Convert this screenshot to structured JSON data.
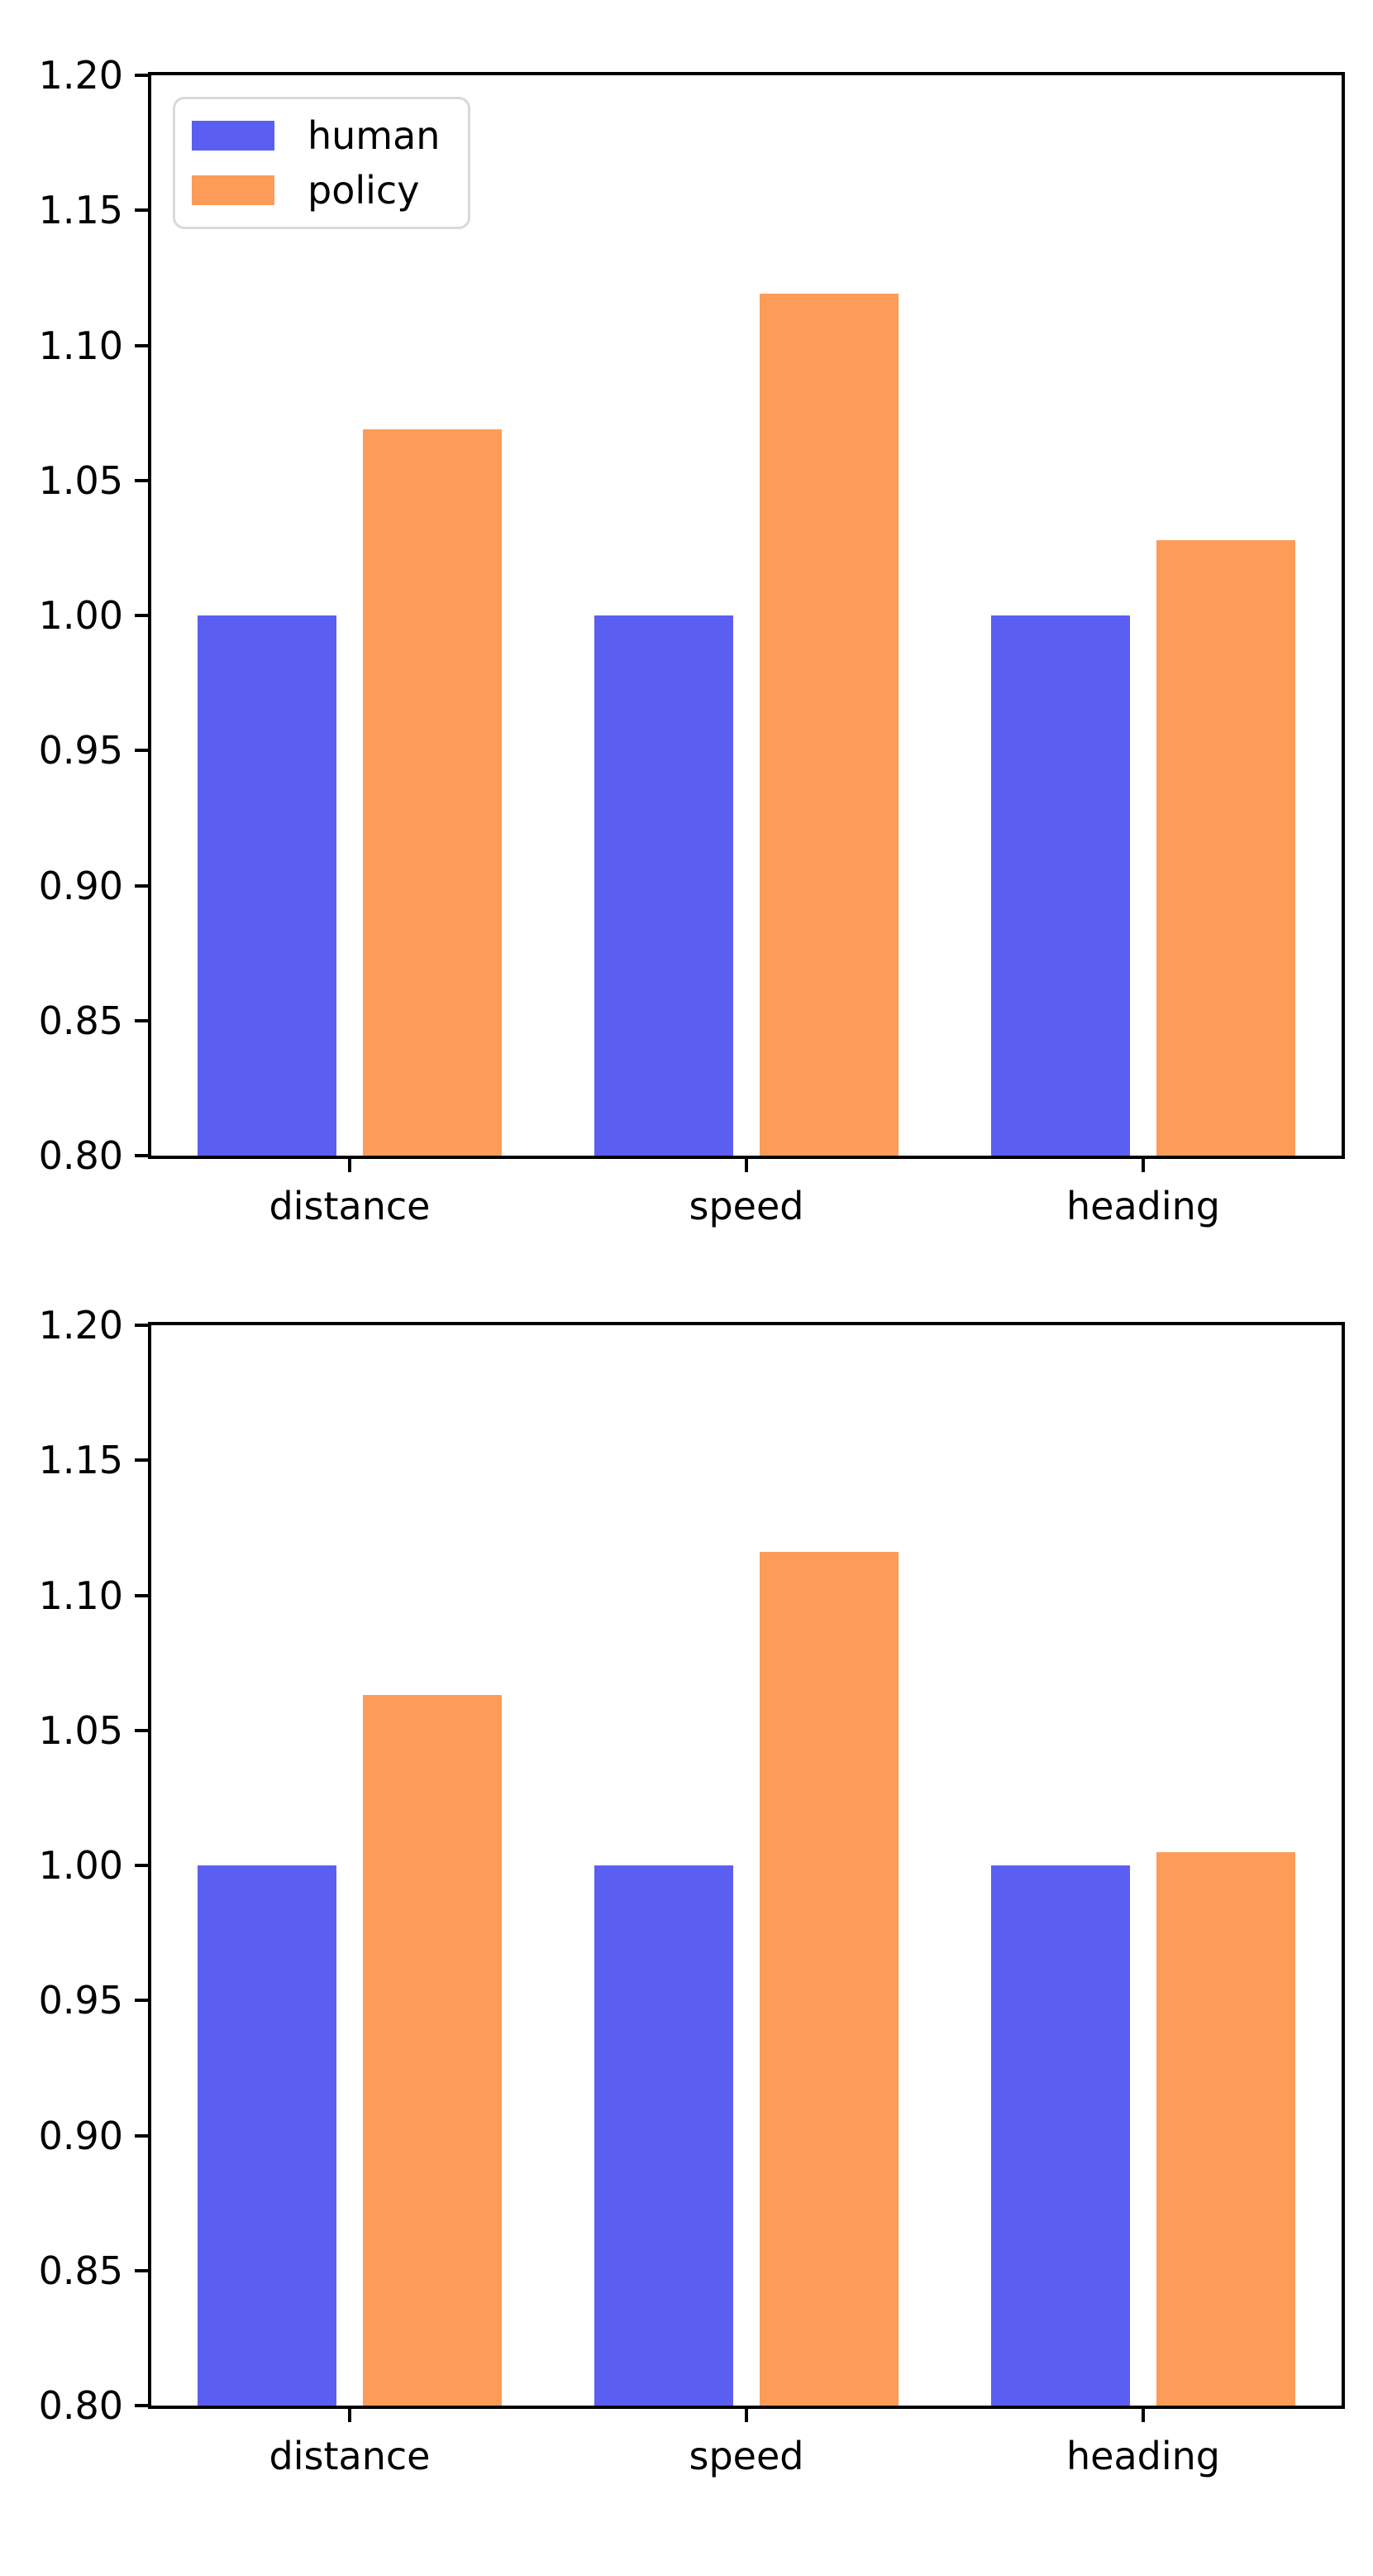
{
  "figure": {
    "background": "#ffffff",
    "text_color": "#000000"
  },
  "chart_data": [
    {
      "type": "bar",
      "title": "",
      "xlabel": "",
      "ylabel": "",
      "categories": [
        "distance",
        "speed",
        "heading"
      ],
      "series": [
        {
          "name": "human",
          "color": "#5b5ff1",
          "values": [
            1.0,
            1.0,
            1.0
          ]
        },
        {
          "name": "policy",
          "color": "#fc9c58",
          "values": [
            1.069,
            1.119,
            1.028
          ]
        }
      ],
      "ylim": [
        0.8,
        1.2
      ],
      "ytick_labels": [
        "0.80",
        "0.85",
        "0.90",
        "0.95",
        "1.00",
        "1.05",
        "1.10",
        "1.15",
        "1.20"
      ],
      "grid": false,
      "legend": {
        "visible": true,
        "position": "upper-left",
        "labels": [
          "human",
          "policy"
        ]
      }
    },
    {
      "type": "bar",
      "title": "",
      "xlabel": "",
      "ylabel": "",
      "categories": [
        "distance",
        "speed",
        "heading"
      ],
      "series": [
        {
          "name": "human",
          "color": "#5b5ff1",
          "values": [
            1.0,
            1.0,
            1.0
          ]
        },
        {
          "name": "policy",
          "color": "#fc9c58",
          "values": [
            1.063,
            1.116,
            1.005
          ]
        }
      ],
      "ylim": [
        0.8,
        1.2
      ],
      "ytick_labels": [
        "0.80",
        "0.85",
        "0.90",
        "0.95",
        "1.00",
        "1.05",
        "1.10",
        "1.15",
        "1.20"
      ],
      "grid": false,
      "legend": {
        "visible": false,
        "position": null,
        "labels": []
      }
    }
  ]
}
